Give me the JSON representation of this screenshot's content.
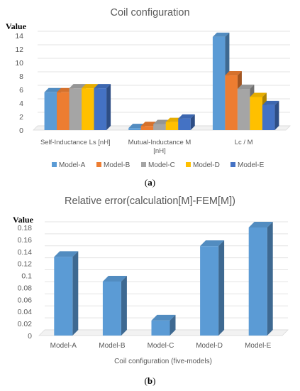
{
  "chart_data": [
    {
      "type": "bar",
      "title": "Coil configuration",
      "ylabel": "Value",
      "xlabel": "",
      "ylim": [
        0,
        14
      ],
      "yticks": [
        0,
        2,
        4,
        6,
        8,
        10,
        12,
        14
      ],
      "categories": [
        "Self-Inductance Ls [nH]",
        "Mutual-Inductance M [nH]",
        "Lc / M"
      ],
      "category_lines": [
        [
          "Self-Inductance Ls [nH]"
        ],
        [
          "Mutual-Inductance M",
          "[nH]"
        ],
        [
          "Lc / M"
        ]
      ],
      "series": [
        {
          "name": "Model-A",
          "color": "#5b9bd5",
          "values": [
            5.6,
            0.3,
            13.8
          ]
        },
        {
          "name": "Model-B",
          "color": "#ed7d31",
          "values": [
            5.6,
            0.6,
            8.1
          ]
        },
        {
          "name": "Model-C",
          "color": "#a5a5a5",
          "values": [
            6.2,
            0.9,
            6.1
          ]
        },
        {
          "name": "Model-D",
          "color": "#ffc000",
          "values": [
            6.2,
            1.2,
            4.9
          ]
        },
        {
          "name": "Model-E",
          "color": "#4472c4",
          "values": [
            6.2,
            1.7,
            3.7
          ]
        }
      ],
      "legend_position": "bottom",
      "grid": true,
      "style": "3d-clustered-bar"
    },
    {
      "type": "bar",
      "title": "Relative error(calculation[M]-FEM[M])",
      "ylabel": "Value",
      "xlabel": "Coil configuration (five-models)",
      "ylim": [
        0,
        0.18
      ],
      "yticks": [
        "0",
        "0.02",
        "0.04",
        "0.06",
        "0.08",
        "0.1",
        "0.12",
        "0.14",
        "0.16",
        "0.18"
      ],
      "categories": [
        "Model-A",
        "Model-B",
        "Model-C",
        "Model-D",
        "Model-E"
      ],
      "series": [
        {
          "color": "#5b9bd5",
          "values": [
            0.131,
            0.09,
            0.025,
            0.149,
            0.18
          ]
        }
      ],
      "legend_position": "none",
      "grid": true,
      "style": "3d-bar"
    }
  ],
  "captions": {
    "a": "(a)",
    "a_letter": "a",
    "b": "(b)",
    "b_letter": "b"
  }
}
